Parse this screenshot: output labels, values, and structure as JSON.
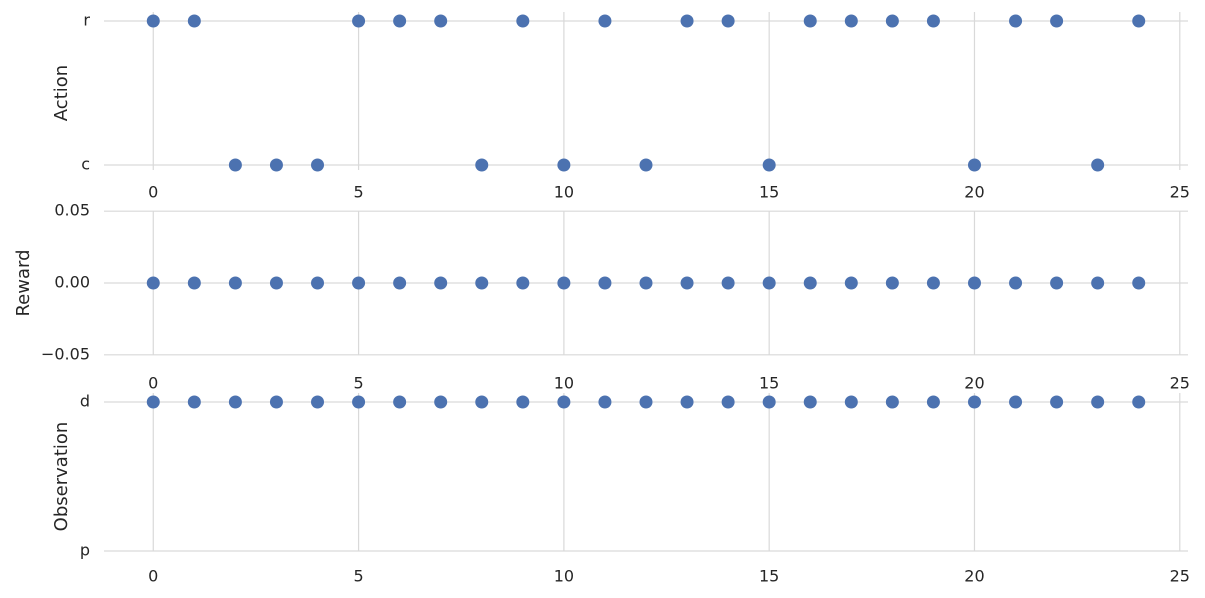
{
  "chart_data": [
    {
      "type": "scatter",
      "ylabel": "Action",
      "x": [
        0,
        1,
        2,
        3,
        4,
        5,
        6,
        7,
        8,
        9,
        10,
        11,
        12,
        13,
        14,
        15,
        16,
        17,
        18,
        19,
        20,
        21,
        22,
        23,
        24
      ],
      "values": [
        "r",
        "r",
        "c",
        "c",
        "c",
        "r",
        "r",
        "r",
        "c",
        "r",
        "c",
        "r",
        "c",
        "r",
        "r",
        "c",
        "r",
        "r",
        "r",
        "r",
        "c",
        "r",
        "r",
        "c",
        "r"
      ],
      "ycategories": [
        "c",
        "r"
      ],
      "xlim": [
        -1.2,
        25.2
      ],
      "xticks": [
        0,
        5,
        10,
        15,
        20,
        25
      ],
      "color": "#4c72b0",
      "grid": true
    },
    {
      "type": "scatter",
      "ylabel": "Reward",
      "x": [
        0,
        1,
        2,
        3,
        4,
        5,
        6,
        7,
        8,
        9,
        10,
        11,
        12,
        13,
        14,
        15,
        16,
        17,
        18,
        19,
        20,
        21,
        22,
        23,
        24
      ],
      "values": [
        0,
        0,
        0,
        0,
        0,
        0,
        0,
        0,
        0,
        0,
        0,
        0,
        0,
        0,
        0,
        0,
        0,
        0,
        0,
        0,
        0,
        0,
        0,
        0,
        0
      ],
      "ylim": [
        -0.055,
        0.055
      ],
      "yticks": [
        {
          "value": -0.05,
          "label": "−0.05"
        },
        {
          "value": 0,
          "label": "0.00"
        },
        {
          "value": 0.05,
          "label": "0.05"
        }
      ],
      "xlim": [
        -1.2,
        25.2
      ],
      "xticks": [
        0,
        5,
        10,
        15,
        20,
        25
      ],
      "color": "#4c72b0",
      "grid": true
    },
    {
      "type": "scatter",
      "ylabel": "Observation",
      "x": [
        0,
        1,
        2,
        3,
        4,
        5,
        6,
        7,
        8,
        9,
        10,
        11,
        12,
        13,
        14,
        15,
        16,
        17,
        18,
        19,
        20,
        21,
        22,
        23,
        24
      ],
      "values": [
        "d",
        "d",
        "d",
        "d",
        "d",
        "d",
        "d",
        "d",
        "d",
        "d",
        "d",
        "d",
        "d",
        "d",
        "d",
        "d",
        "d",
        "d",
        "d",
        "d",
        "d",
        "d",
        "d",
        "d",
        "d"
      ],
      "ycategories": [
        "p",
        "d"
      ],
      "xlim": [
        -1.2,
        25.2
      ],
      "xticks": [
        0,
        5,
        10,
        15,
        20,
        25
      ],
      "color": "#4c72b0",
      "grid": true
    }
  ]
}
